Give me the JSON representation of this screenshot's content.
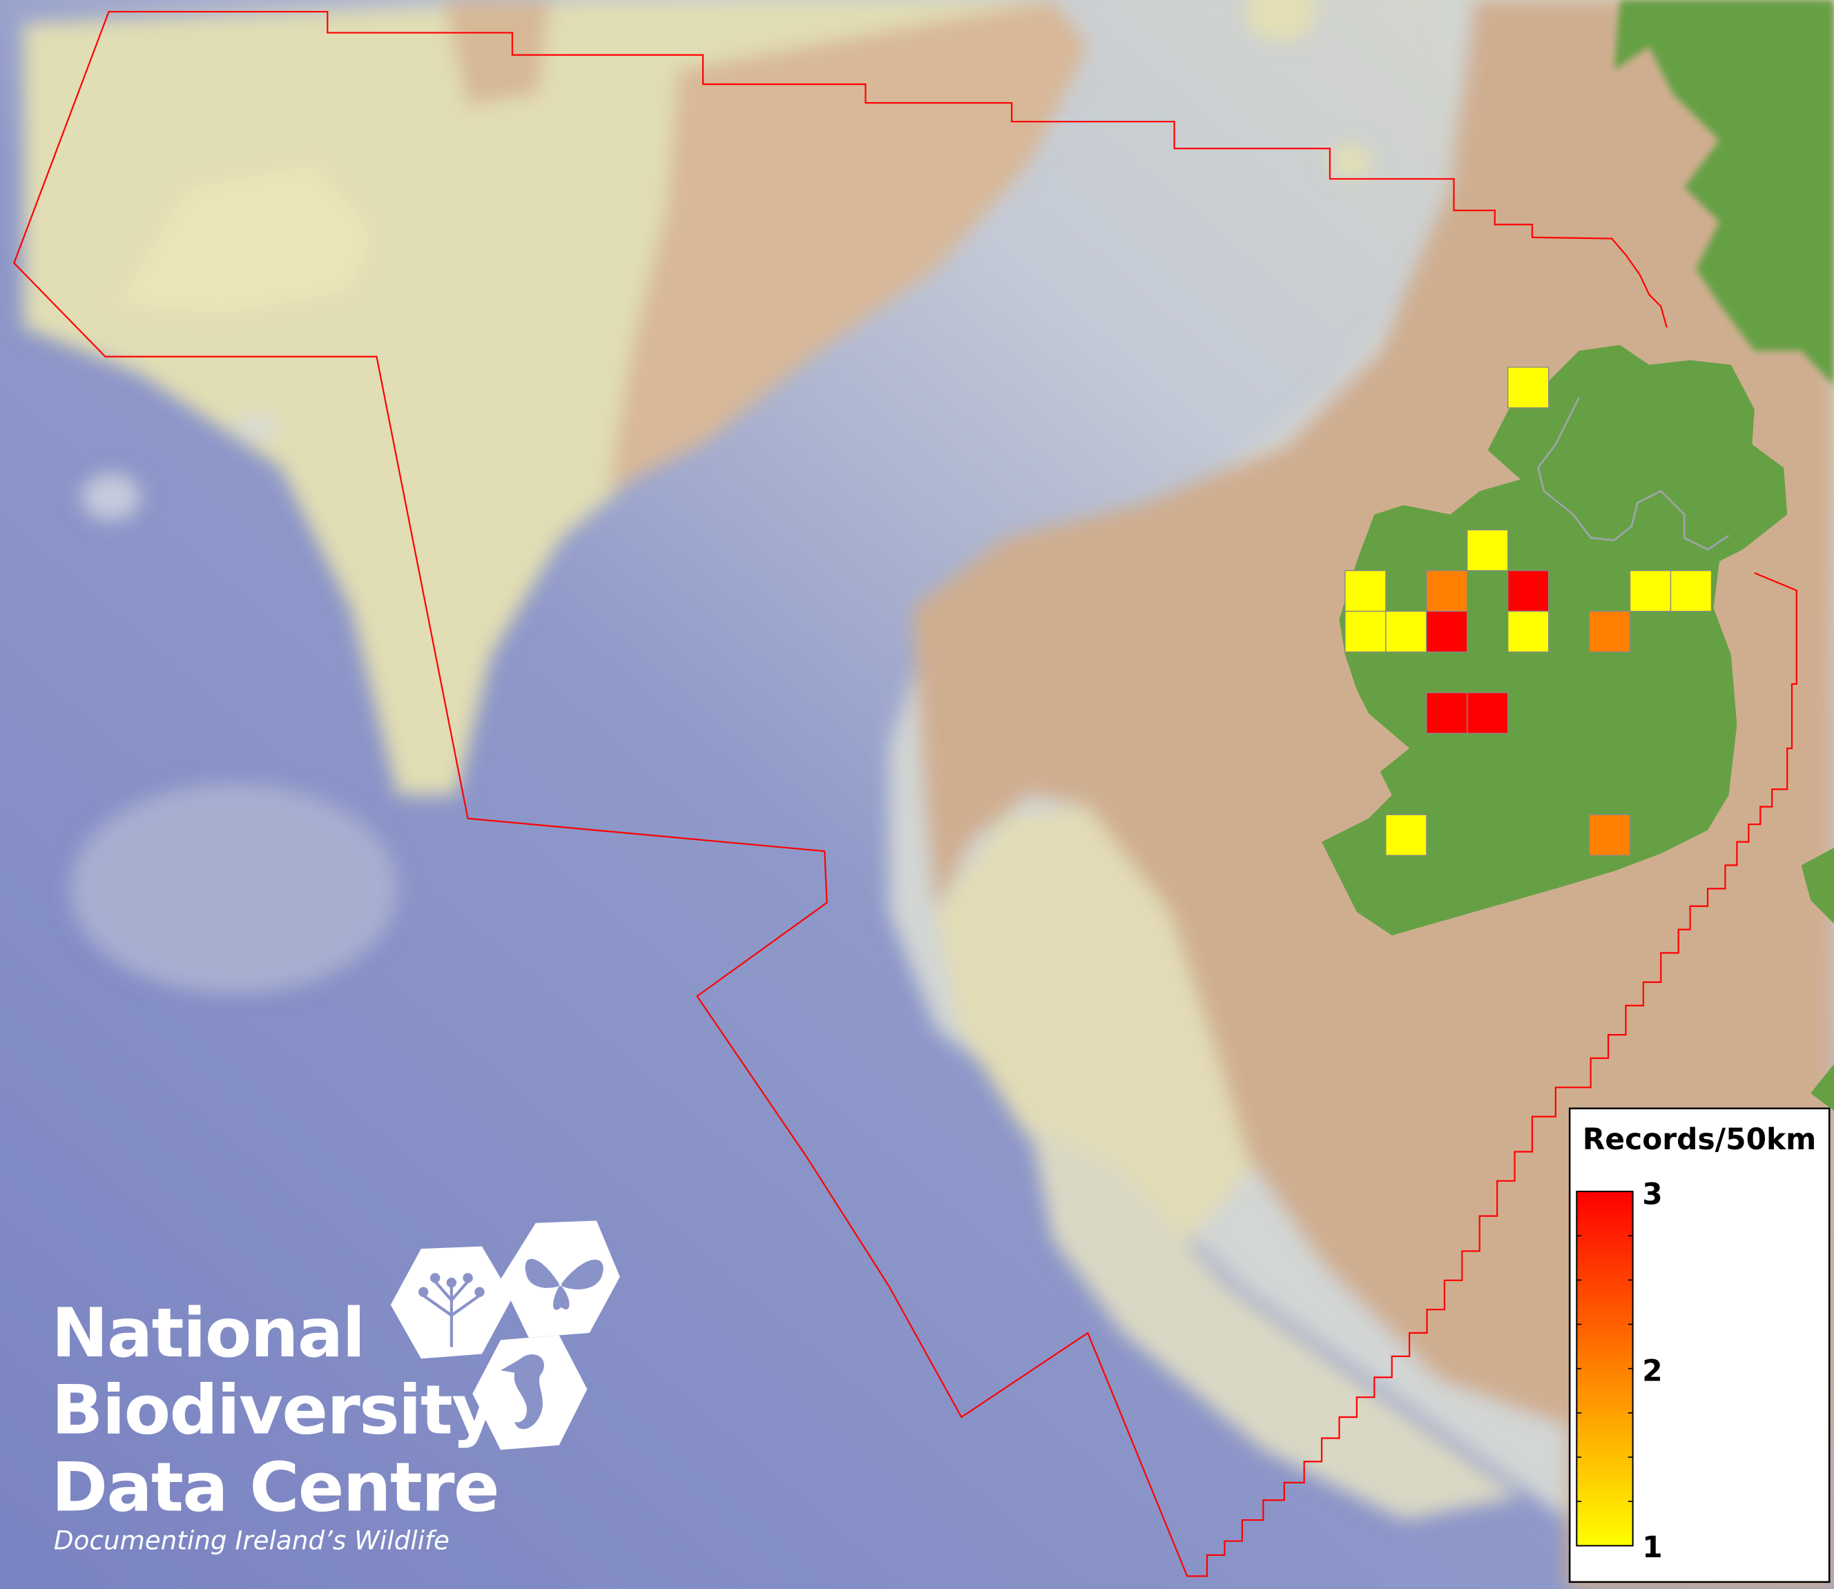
{
  "map": {
    "colors": {
      "deep_sea": "#7f89c6",
      "shelf": "#e4dfb4",
      "slope": "#cdd3d8",
      "land_tan": "#cfae90",
      "land_green": "#66a044",
      "boundary": "#ff0000",
      "cell_border": "#888888"
    },
    "records_grid_50km": [
      [
        null,
        null,
        null,
        null,
        1,
        null,
        null,
        null,
        null
      ],
      [
        null,
        null,
        null,
        null,
        null,
        null,
        null,
        null,
        null
      ],
      [
        null,
        null,
        null,
        null,
        null,
        null,
        null,
        null,
        null
      ],
      [
        null,
        null,
        null,
        null,
        null,
        null,
        null,
        null,
        null
      ],
      [
        null,
        null,
        null,
        1,
        null,
        null,
        null,
        null,
        null
      ],
      [
        1,
        null,
        2,
        null,
        3,
        null,
        null,
        1,
        1
      ],
      [
        1,
        1,
        3,
        null,
        1,
        null,
        2,
        null,
        null
      ],
      [
        null,
        null,
        null,
        null,
        null,
        null,
        null,
        null,
        null
      ],
      [
        null,
        null,
        3,
        3,
        null,
        null,
        null,
        null,
        null
      ],
      [
        null,
        null,
        null,
        null,
        null,
        null,
        null,
        null,
        null
      ],
      [
        null,
        null,
        null,
        null,
        null,
        null,
        null,
        null,
        null
      ],
      [
        null,
        1,
        null,
        null,
        null,
        null,
        2,
        null,
        null
      ]
    ]
  },
  "legend": {
    "title": "Records/50km",
    "ticks": [
      "3",
      "2",
      "1"
    ],
    "min": 1,
    "max": 3,
    "color_min": "#ffff00",
    "color_mid": "#ff8000",
    "color_max": "#ff0000"
  },
  "logo": {
    "line1": "National",
    "line2": "Biodiversity",
    "line3": "Data Centre",
    "tagline": "Documenting Ireland’s Wildlife",
    "icons": [
      "tree-icon",
      "butterfly-icon",
      "seahorse-icon"
    ]
  }
}
